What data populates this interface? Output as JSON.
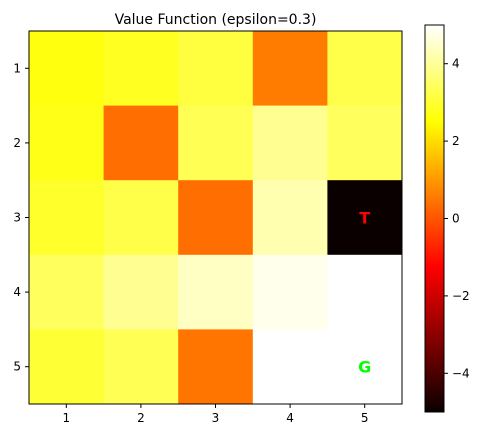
{
  "chart_data": {
    "type": "heatmap",
    "title": "Value Function (epsilon=0.3)",
    "xlabel": "",
    "ylabel": "",
    "x_tick_labels": [
      "1",
      "2",
      "3",
      "4",
      "5"
    ],
    "y_tick_labels": [
      "1",
      "2",
      "3",
      "4",
      "5"
    ],
    "colormap": "hot",
    "vmin": -5,
    "vmax": 5,
    "colorbar_ticks": [
      -4,
      -2,
      0,
      2,
      4
    ],
    "colorbar_tick_labels": [
      "−4",
      "−2",
      "0",
      "2",
      "4"
    ],
    "values": [
      [
        2.6,
        2.8,
        3.1,
        0.5,
        3.2
      ],
      [
        2.7,
        0.3,
        3.3,
        3.9,
        3.4
      ],
      [
        2.9,
        3.2,
        0.3,
        4.2,
        -5.0
      ],
      [
        3.4,
        3.9,
        4.4,
        4.8,
        5.0
      ],
      [
        3.0,
        3.3,
        0.4,
        5.0,
        5.0
      ]
    ],
    "cell_labels": [
      {
        "row": 3,
        "col": 5,
        "text": "T",
        "color": "#ff0000"
      },
      {
        "row": 5,
        "col": 5,
        "text": "G",
        "color": "#00ff00"
      }
    ]
  }
}
